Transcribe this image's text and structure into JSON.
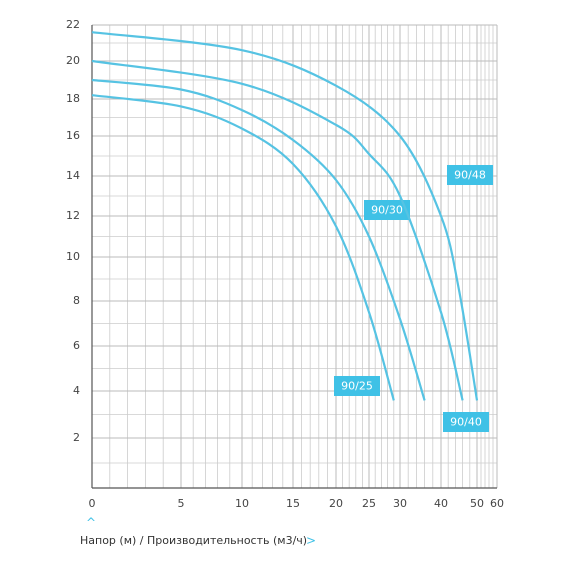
{
  "chart_data": {
    "type": "line",
    "xlabel": "Напор (м) / Производительность (м3/ч)",
    "xlim": [
      0,
      60
    ],
    "xticks": [
      0,
      5,
      10,
      15,
      20,
      25,
      30,
      40,
      50,
      60
    ],
    "ylim": [
      0,
      22
    ],
    "yticks": [
      2,
      4,
      6,
      8,
      10,
      12,
      14,
      16,
      18,
      20,
      22
    ],
    "grid": true,
    "series": [
      {
        "name": "90/25",
        "color": "#56c3e3",
        "x": [
          0,
          5,
          10,
          15,
          20,
          25,
          29
        ],
        "values": [
          18.2,
          17.6,
          16.4,
          14.6,
          11.5,
          7.5,
          3.6
        ]
      },
      {
        "name": "90/30",
        "color": "#56c3e3",
        "x": [
          0,
          5,
          10,
          15,
          20,
          25,
          30,
          36
        ],
        "values": [
          19,
          18.5,
          17.4,
          15.8,
          13.8,
          11,
          7.2,
          3.6
        ]
      },
      {
        "name": "90/40",
        "color": "#56c3e3",
        "x": [
          0,
          10,
          20,
          25,
          30,
          40,
          46
        ],
        "values": [
          20,
          18.8,
          16.6,
          15.1,
          13,
          7.5,
          3.6
        ]
      },
      {
        "name": "90/48",
        "color": "#56c3e3",
        "x": [
          0,
          10,
          20,
          30,
          40,
          45,
          50
        ],
        "values": [
          21.6,
          20.6,
          18.7,
          16,
          12,
          8.5,
          3.6
        ]
      }
    ]
  }
}
